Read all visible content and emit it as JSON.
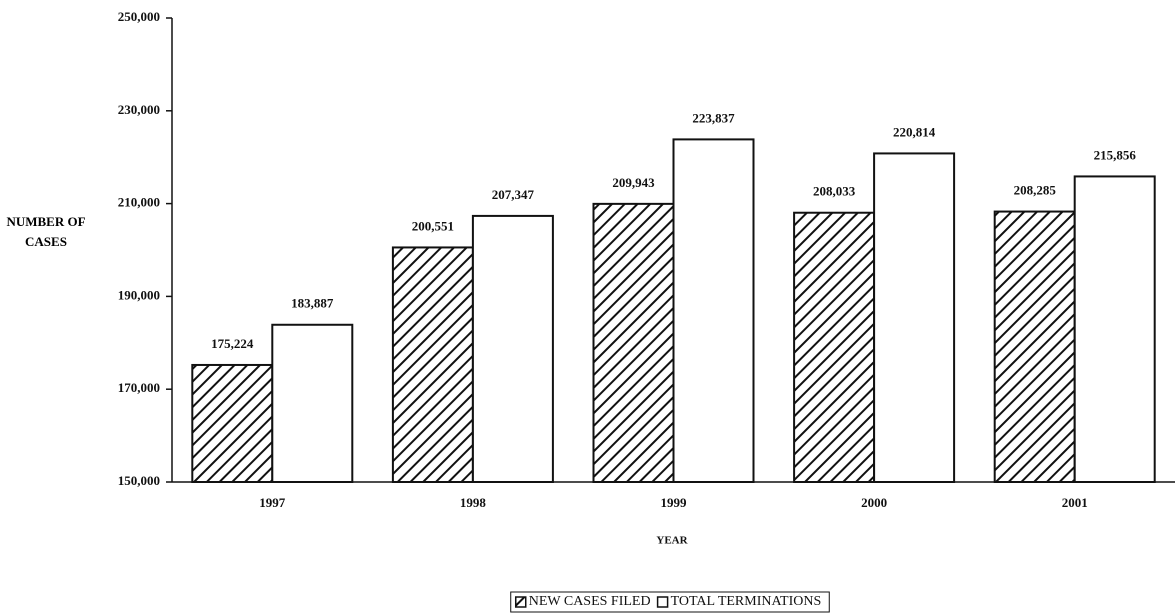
{
  "chart_data": {
    "type": "bar",
    "x_label": "YEAR",
    "y_label": "NUMBER OF CASES",
    "categories": [
      "1997",
      "1998",
      "1999",
      "2000",
      "2001"
    ],
    "series": [
      {
        "name": "NEW CASES FILED",
        "color": "#000000",
        "pattern": "hatch",
        "values": [
          175224,
          200551,
          209943,
          208033,
          208285
        ],
        "value_labels": [
          "175,224",
          "200,551",
          "209,943",
          "208,033",
          "208,285"
        ]
      },
      {
        "name": "TOTAL TERMINATIONS",
        "color": "#ffffff",
        "pattern": "solid",
        "values": [
          183887,
          207347,
          223837,
          220814,
          215856
        ],
        "value_labels": [
          "183,887",
          "207,347",
          "223,837",
          "220,814",
          "215,856"
        ]
      }
    ],
    "ylim": [
      150000,
      250000
    ],
    "yticks": [
      {
        "value": 150000,
        "label": "150,000"
      },
      {
        "value": 170000,
        "label": "170,000"
      },
      {
        "value": 190000,
        "label": "190,000"
      },
      {
        "value": 210000,
        "label": "210,000"
      },
      {
        "value": 230000,
        "label": "230,000"
      },
      {
        "value": 250000,
        "label": "250,000"
      }
    ],
    "grid": false,
    "legend": "bottom"
  }
}
